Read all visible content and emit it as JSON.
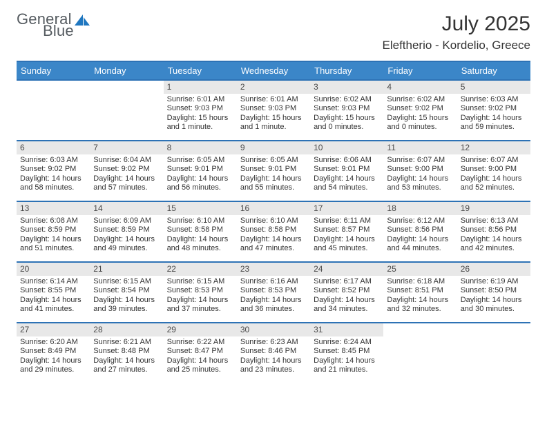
{
  "logo": {
    "line1": "General",
    "line2": "Blue",
    "color_text": "#5b6166",
    "color_blue": "#1f77c0"
  },
  "title": {
    "month": "July 2025",
    "location": "Eleftherio - Kordelio, Greece"
  },
  "colors": {
    "header_bg": "#3b86c8",
    "rule": "#2d72b5",
    "daynum_bg": "#e8e8e8"
  },
  "day_headers": [
    "Sunday",
    "Monday",
    "Tuesday",
    "Wednesday",
    "Thursday",
    "Friday",
    "Saturday"
  ],
  "weeks": [
    [
      {
        "n": "",
        "sunrise": "",
        "sunset": "",
        "daylight": ""
      },
      {
        "n": "",
        "sunrise": "",
        "sunset": "",
        "daylight": ""
      },
      {
        "n": "1",
        "sunrise": "Sunrise: 6:01 AM",
        "sunset": "Sunset: 9:03 PM",
        "daylight": "Daylight: 15 hours and 1 minute."
      },
      {
        "n": "2",
        "sunrise": "Sunrise: 6:01 AM",
        "sunset": "Sunset: 9:03 PM",
        "daylight": "Daylight: 15 hours and 1 minute."
      },
      {
        "n": "3",
        "sunrise": "Sunrise: 6:02 AM",
        "sunset": "Sunset: 9:03 PM",
        "daylight": "Daylight: 15 hours and 0 minutes."
      },
      {
        "n": "4",
        "sunrise": "Sunrise: 6:02 AM",
        "sunset": "Sunset: 9:02 PM",
        "daylight": "Daylight: 15 hours and 0 minutes."
      },
      {
        "n": "5",
        "sunrise": "Sunrise: 6:03 AM",
        "sunset": "Sunset: 9:02 PM",
        "daylight": "Daylight: 14 hours and 59 minutes."
      }
    ],
    [
      {
        "n": "6",
        "sunrise": "Sunrise: 6:03 AM",
        "sunset": "Sunset: 9:02 PM",
        "daylight": "Daylight: 14 hours and 58 minutes."
      },
      {
        "n": "7",
        "sunrise": "Sunrise: 6:04 AM",
        "sunset": "Sunset: 9:02 PM",
        "daylight": "Daylight: 14 hours and 57 minutes."
      },
      {
        "n": "8",
        "sunrise": "Sunrise: 6:05 AM",
        "sunset": "Sunset: 9:01 PM",
        "daylight": "Daylight: 14 hours and 56 minutes."
      },
      {
        "n": "9",
        "sunrise": "Sunrise: 6:05 AM",
        "sunset": "Sunset: 9:01 PM",
        "daylight": "Daylight: 14 hours and 55 minutes."
      },
      {
        "n": "10",
        "sunrise": "Sunrise: 6:06 AM",
        "sunset": "Sunset: 9:01 PM",
        "daylight": "Daylight: 14 hours and 54 minutes."
      },
      {
        "n": "11",
        "sunrise": "Sunrise: 6:07 AM",
        "sunset": "Sunset: 9:00 PM",
        "daylight": "Daylight: 14 hours and 53 minutes."
      },
      {
        "n": "12",
        "sunrise": "Sunrise: 6:07 AM",
        "sunset": "Sunset: 9:00 PM",
        "daylight": "Daylight: 14 hours and 52 minutes."
      }
    ],
    [
      {
        "n": "13",
        "sunrise": "Sunrise: 6:08 AM",
        "sunset": "Sunset: 8:59 PM",
        "daylight": "Daylight: 14 hours and 51 minutes."
      },
      {
        "n": "14",
        "sunrise": "Sunrise: 6:09 AM",
        "sunset": "Sunset: 8:59 PM",
        "daylight": "Daylight: 14 hours and 49 minutes."
      },
      {
        "n": "15",
        "sunrise": "Sunrise: 6:10 AM",
        "sunset": "Sunset: 8:58 PM",
        "daylight": "Daylight: 14 hours and 48 minutes."
      },
      {
        "n": "16",
        "sunrise": "Sunrise: 6:10 AM",
        "sunset": "Sunset: 8:58 PM",
        "daylight": "Daylight: 14 hours and 47 minutes."
      },
      {
        "n": "17",
        "sunrise": "Sunrise: 6:11 AM",
        "sunset": "Sunset: 8:57 PM",
        "daylight": "Daylight: 14 hours and 45 minutes."
      },
      {
        "n": "18",
        "sunrise": "Sunrise: 6:12 AM",
        "sunset": "Sunset: 8:56 PM",
        "daylight": "Daylight: 14 hours and 44 minutes."
      },
      {
        "n": "19",
        "sunrise": "Sunrise: 6:13 AM",
        "sunset": "Sunset: 8:56 PM",
        "daylight": "Daylight: 14 hours and 42 minutes."
      }
    ],
    [
      {
        "n": "20",
        "sunrise": "Sunrise: 6:14 AM",
        "sunset": "Sunset: 8:55 PM",
        "daylight": "Daylight: 14 hours and 41 minutes."
      },
      {
        "n": "21",
        "sunrise": "Sunrise: 6:15 AM",
        "sunset": "Sunset: 8:54 PM",
        "daylight": "Daylight: 14 hours and 39 minutes."
      },
      {
        "n": "22",
        "sunrise": "Sunrise: 6:15 AM",
        "sunset": "Sunset: 8:53 PM",
        "daylight": "Daylight: 14 hours and 37 minutes."
      },
      {
        "n": "23",
        "sunrise": "Sunrise: 6:16 AM",
        "sunset": "Sunset: 8:53 PM",
        "daylight": "Daylight: 14 hours and 36 minutes."
      },
      {
        "n": "24",
        "sunrise": "Sunrise: 6:17 AM",
        "sunset": "Sunset: 8:52 PM",
        "daylight": "Daylight: 14 hours and 34 minutes."
      },
      {
        "n": "25",
        "sunrise": "Sunrise: 6:18 AM",
        "sunset": "Sunset: 8:51 PM",
        "daylight": "Daylight: 14 hours and 32 minutes."
      },
      {
        "n": "26",
        "sunrise": "Sunrise: 6:19 AM",
        "sunset": "Sunset: 8:50 PM",
        "daylight": "Daylight: 14 hours and 30 minutes."
      }
    ],
    [
      {
        "n": "27",
        "sunrise": "Sunrise: 6:20 AM",
        "sunset": "Sunset: 8:49 PM",
        "daylight": "Daylight: 14 hours and 29 minutes."
      },
      {
        "n": "28",
        "sunrise": "Sunrise: 6:21 AM",
        "sunset": "Sunset: 8:48 PM",
        "daylight": "Daylight: 14 hours and 27 minutes."
      },
      {
        "n": "29",
        "sunrise": "Sunrise: 6:22 AM",
        "sunset": "Sunset: 8:47 PM",
        "daylight": "Daylight: 14 hours and 25 minutes."
      },
      {
        "n": "30",
        "sunrise": "Sunrise: 6:23 AM",
        "sunset": "Sunset: 8:46 PM",
        "daylight": "Daylight: 14 hours and 23 minutes."
      },
      {
        "n": "31",
        "sunrise": "Sunrise: 6:24 AM",
        "sunset": "Sunset: 8:45 PM",
        "daylight": "Daylight: 14 hours and 21 minutes."
      },
      {
        "n": "",
        "sunrise": "",
        "sunset": "",
        "daylight": ""
      },
      {
        "n": "",
        "sunrise": "",
        "sunset": "",
        "daylight": ""
      }
    ]
  ]
}
